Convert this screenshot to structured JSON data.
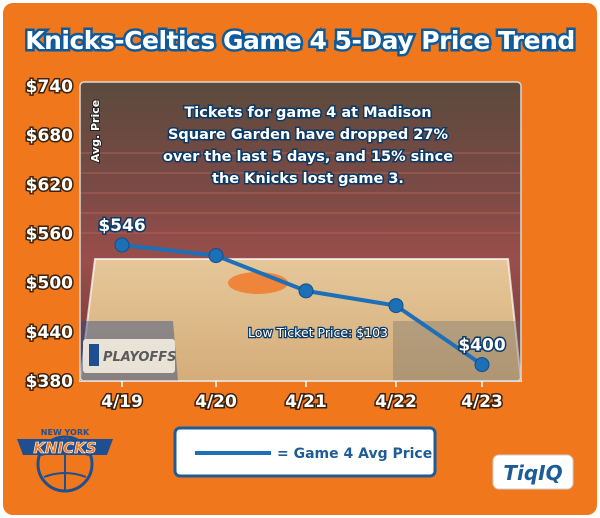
{
  "chart_data": {
    "type": "line",
    "title": "Knicks-Celtics Game 4 5-Day Price Trend",
    "ylabel": "Avg. Price",
    "categories": [
      "4/19",
      "4/20",
      "4/21",
      "4/22",
      "4/23"
    ],
    "series": [
      {
        "name": "Game 4 Avg Price",
        "values": [
          546,
          533,
          490,
          472,
          400
        ],
        "color": "#1d6fb8"
      }
    ],
    "point_labels": [
      "$546",
      "",
      "",
      "",
      "$400"
    ],
    "yticks": [
      "$740",
      "$680",
      "$620",
      "$560",
      "$500",
      "$440",
      "$380"
    ],
    "ytick_values": [
      740,
      680,
      620,
      560,
      500,
      440,
      380
    ],
    "ylim": [
      380,
      740
    ],
    "grid": false,
    "legend": "bottom-center",
    "annotation_lines": [
      "Tickets for game 4 at Madison",
      "Square Garden have dropped 27%",
      "over the last 5 days, and 15% since",
      "the Knicks lost game 3."
    ],
    "low_ticket_note": "Low Ticket Price: $103",
    "legend_label": "= Game 4 Avg Price"
  },
  "branding": {
    "logo_text": "TiqIQ",
    "knicks_top": "NEW YORK",
    "knicks_word": "KNICKS",
    "playoffs": "PLAYOFFS"
  },
  "colors": {
    "background": "#f0771c",
    "title_outline": "#0f5a99",
    "line": "#1d6fb8",
    "legend_border": "#1d5c97"
  }
}
